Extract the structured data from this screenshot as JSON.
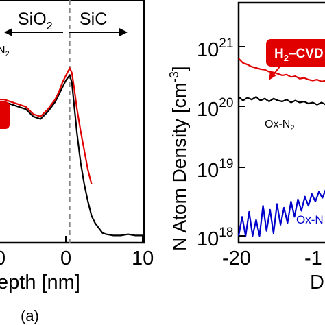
{
  "chart_data": [
    {
      "type": "line",
      "panel_label": "(a)",
      "xlabel_visible": "epth [nm]",
      "xlim": [
        -10.5,
        10
      ],
      "x_ticks": [
        "0",
        "0",
        "10"
      ],
      "ylim": [
        0,
        1
      ],
      "y_scale": "linear-arbitrary",
      "region_labels": {
        "left": {
          "text": "SiO",
          "sub": "2"
        },
        "right": {
          "text": "SiC"
        }
      },
      "interface_x": 0,
      "legend": {
        "text": "N",
        "sub": "2",
        "partial": true
      },
      "series": [
        {
          "color": "#000000",
          "x": [
            -10.5,
            -9,
            -8,
            -7,
            -6,
            -5,
            -4,
            -3,
            -2.5,
            -2,
            -1.5,
            -1,
            -0.5,
            0,
            0.3,
            0.6,
            1,
            1.5,
            2,
            2.5,
            3,
            3.5,
            4,
            4.5,
            5,
            6,
            7,
            8,
            9,
            10
          ],
          "y": [
            0.58,
            0.58,
            0.57,
            0.56,
            0.55,
            0.52,
            0.51,
            0.54,
            0.56,
            0.58,
            0.61,
            0.64,
            0.67,
            0.69,
            0.66,
            0.57,
            0.45,
            0.33,
            0.24,
            0.17,
            0.11,
            0.08,
            0.06,
            0.04,
            0.035,
            0.03,
            0.03,
            0.035,
            0.03,
            0.03
          ]
        },
        {
          "color": "#e00000",
          "x": [
            -10.5,
            -9,
            -8,
            -7,
            -6,
            -5,
            -4,
            -3,
            -2.5,
            -2,
            -1.5,
            -1,
            -0.5,
            0,
            0.3,
            0.6,
            1,
            1.5,
            2,
            2.5,
            3
          ],
          "y": [
            0.59,
            0.59,
            0.58,
            0.57,
            0.56,
            0.53,
            0.52,
            0.55,
            0.57,
            0.59,
            0.62,
            0.66,
            0.69,
            0.72,
            0.7,
            0.64,
            0.55,
            0.46,
            0.38,
            0.3,
            0.24
          ]
        }
      ]
    },
    {
      "type": "line",
      "ylabel": "N Atom Density [cm",
      "ylabel_sup": "-3",
      "ylabel_close": "]",
      "y_scale": "log",
      "ylim": [
        1e+18,
        1e+22
      ],
      "y_ticks": [
        {
          "base": "10",
          "exp": "21",
          "value": 1e+21
        },
        {
          "base": "10",
          "exp": "20",
          "value": 1e+20
        },
        {
          "base": "10",
          "exp": "19",
          "value": 1e+19
        },
        {
          "base": "10",
          "exp": "18",
          "value": 1e+18
        }
      ],
      "xlim": [
        -20,
        -9
      ],
      "x_ticks": [
        "-20",
        "-1"
      ],
      "xlabel_visible": "D",
      "annotations": [
        {
          "text": "H",
          "sub": "2",
          "rest": "–CVD",
          "color": "#e00000"
        },
        {
          "text": "Ox-N",
          "sub": "2",
          "color": "#000000"
        },
        {
          "text": "Ox-N",
          "color": "#0000cc"
        }
      ],
      "series": [
        {
          "color": "#000000",
          "x": [
            -20,
            -19.5,
            -19,
            -18.5,
            -18,
            -17.5,
            -17,
            -16.5,
            -16,
            -15.5,
            -15,
            -14.5,
            -14,
            -13.5,
            -13,
            -12.5,
            -12,
            -11.5,
            -11,
            -10.5,
            -10,
            -9.5,
            -9
          ],
          "y": [
            1.6e+20,
            1.4e+20,
            1.55e+20,
            1.45e+20,
            1.6e+20,
            1.4e+20,
            1.5e+20,
            1.35e+20,
            1.5e+20,
            1.4e+20,
            1.35e+20,
            1.45e+20,
            1.3e+20,
            1.4e+20,
            1.3e+20,
            1.35e+20,
            1.25e+20,
            1.3e+20,
            1.2e+20,
            1.3e+20,
            1.2e+20,
            1.25e+20,
            1.2e+20
          ]
        },
        {
          "color": "#e00000",
          "x": [
            -20,
            -19.5,
            -19,
            -18.5,
            -18,
            -17.5,
            -17,
            -16.5,
            -16,
            -15.5,
            -15,
            -14.5,
            -14,
            -13.5,
            -13,
            -12.5,
            -12,
            -11.5,
            -11,
            -10.5,
            -10,
            -9.5,
            -9
          ],
          "y": [
            6.5e+20,
            5.5e+20,
            5.2e+20,
            4.8e+20,
            4.6e+20,
            4.4e+20,
            4.3e+20,
            4e+20,
            3.9e+20,
            3.7e+20,
            3.5e+20,
            3.6e+20,
            3.3e+20,
            3.4e+20,
            3.1e+20,
            3.2e+20,
            3e+20,
            2.9e+20,
            3e+20,
            2.8e+20,
            2.9e+20,
            2.7e+20,
            2.8e+20
          ]
        },
        {
          "color": "#0000cc",
          "x": [
            -20,
            -19.6,
            -19.2,
            -18.8,
            -18.4,
            -18,
            -17.6,
            -17.2,
            -16.8,
            -16.4,
            -16,
            -15.6,
            -15.2,
            -14.8,
            -14.4,
            -14,
            -13.6,
            -13.2,
            -12.8,
            -12.4,
            -12,
            -11.6,
            -11.2,
            -10.8,
            -10.4,
            -10,
            -9.6,
            -9.2,
            -9
          ],
          "y": [
            1e+18,
            2e+18,
            1e+18,
            2.4e+18,
            1e+18,
            1.8e+18,
            1e+18,
            3e+18,
            1.2e+18,
            2.6e+18,
            1.1e+18,
            3.2e+18,
            1.5e+18,
            2.8e+18,
            1.6e+18,
            3.5e+18,
            2e+18,
            3.8e+18,
            2.5e+18,
            4.2e+18,
            3e+18,
            4.6e+18,
            3.5e+18,
            5e+18,
            4e+18,
            5.5e+18,
            4.5e+18,
            6e+18,
            5.2e+18
          ]
        }
      ]
    }
  ]
}
